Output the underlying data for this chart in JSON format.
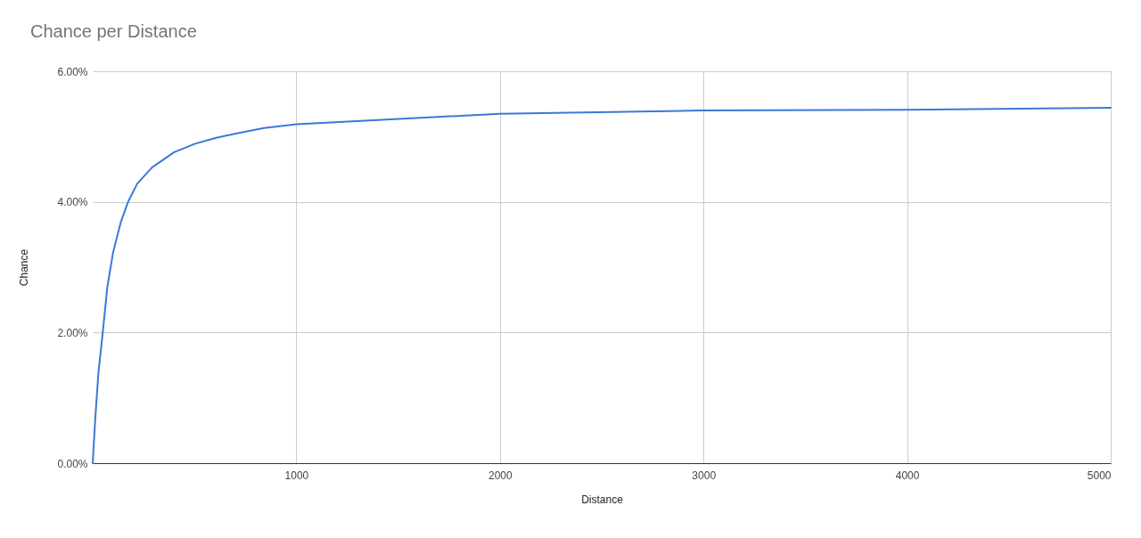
{
  "chart_data": {
    "type": "line",
    "title": "Chance per Distance",
    "xlabel": "Distance",
    "ylabel": "Chance",
    "x": [
      0,
      13,
      28,
      50,
      72,
      101,
      138,
      175,
      219,
      292,
      400,
      503,
      606,
      724,
      841,
      1000,
      2000,
      3000,
      4000,
      5000
    ],
    "series": [
      {
        "color": "#3c78d8",
        "values": [
          0,
          0.7,
          1.38,
          2.02,
          2.7,
          3.24,
          3.69,
          4.01,
          4.28,
          4.53,
          4.76,
          4.89,
          4.98,
          5.06,
          5.13,
          5.19,
          5.35,
          5.4,
          5.41,
          5.44
        ]
      }
    ],
    "xlim": [
      0,
      5000
    ],
    "xticks": [
      1000,
      2000,
      3000,
      4000,
      5000
    ],
    "ylim": [
      0,
      6
    ],
    "yticks": [
      {
        "value": 0,
        "label": "0.00%"
      },
      {
        "value": 2,
        "label": "2.00%"
      },
      {
        "value": 4,
        "label": "4.00%"
      },
      {
        "value": 6,
        "label": "6.00%"
      }
    ],
    "grid": true,
    "marker": "none",
    "line_style": "solid"
  }
}
